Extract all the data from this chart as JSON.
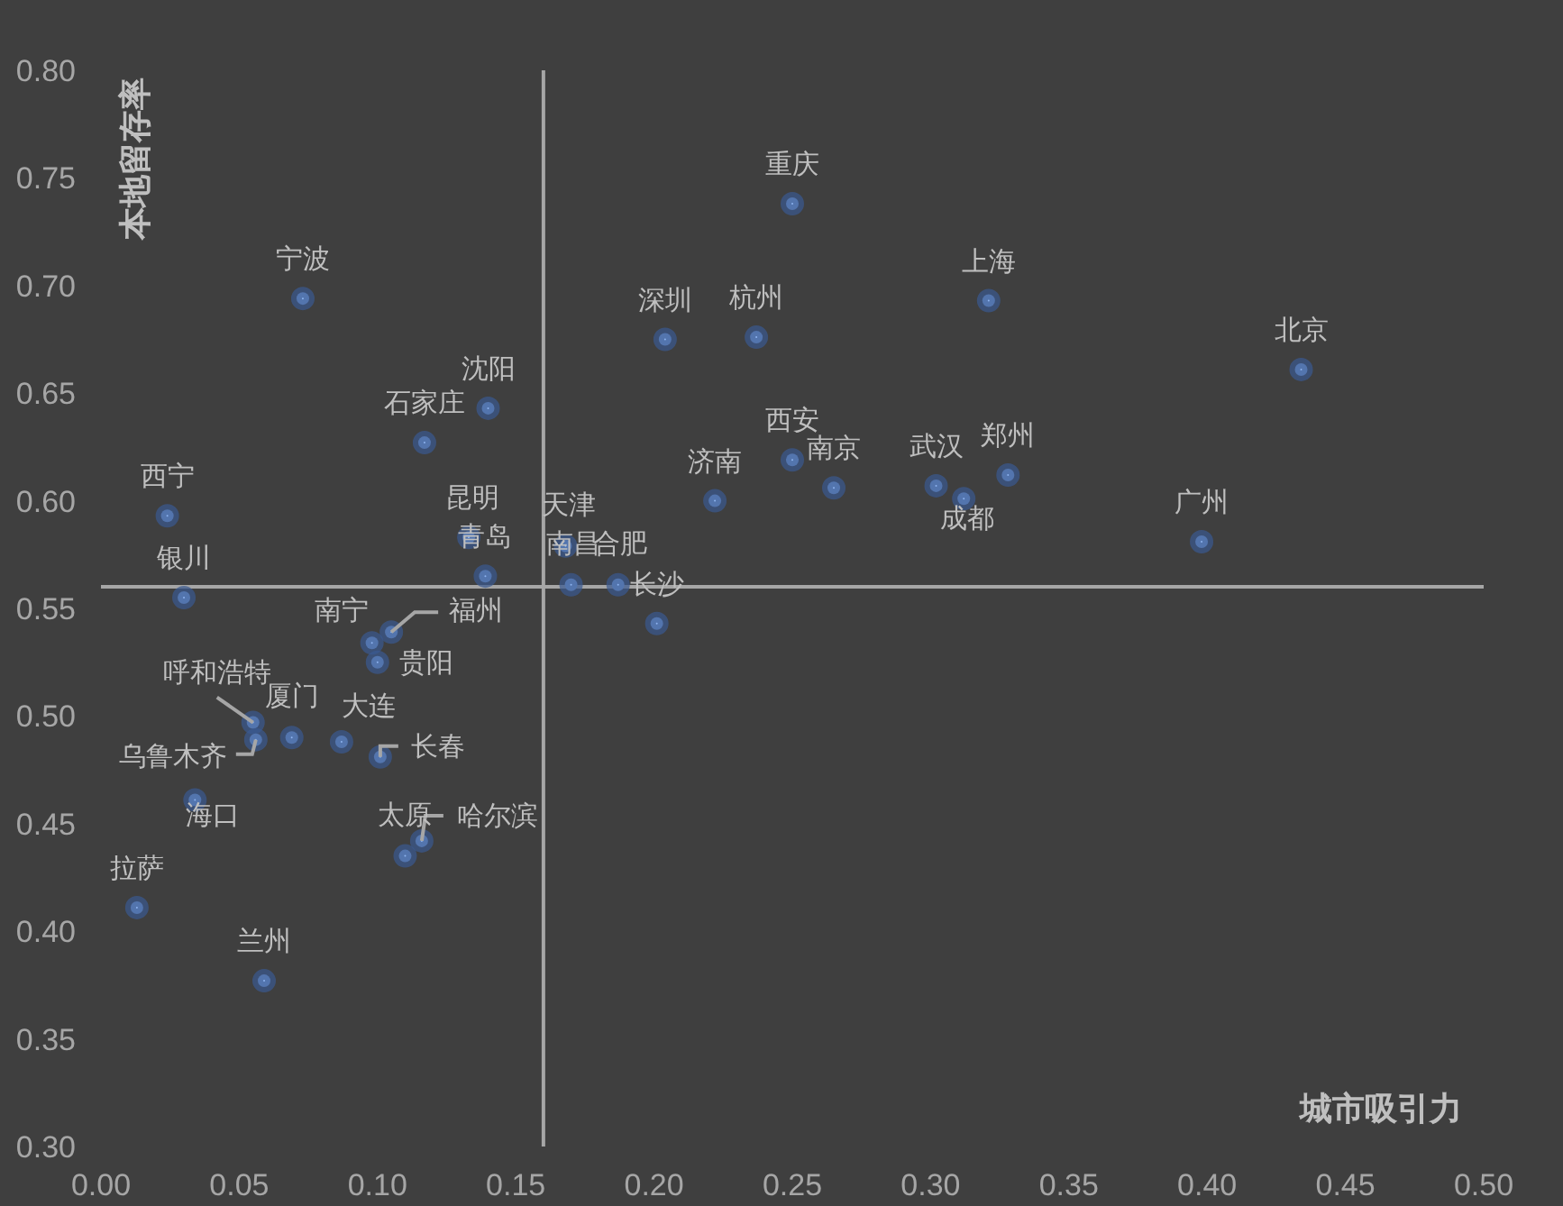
{
  "chart_data": {
    "type": "scatter",
    "xlabel": "城市吸引力",
    "ylabel": "本地留存率",
    "marker": "circle",
    "xlim": [
      0,
      0.5
    ],
    "ylim": [
      0.3,
      0.8
    ],
    "xticks": [
      {
        "value": 0,
        "label": "0.00"
      },
      {
        "value": 0.05,
        "label": "0.05"
      },
      {
        "value": 0.1,
        "label": "0.10"
      },
      {
        "value": 0.15,
        "label": "0.15"
      },
      {
        "value": 0.2,
        "label": "0.20"
      },
      {
        "value": 0.25,
        "label": "0.25"
      },
      {
        "value": 0.3,
        "label": "0.30"
      },
      {
        "value": 0.35,
        "label": "0.35"
      },
      {
        "value": 0.4,
        "label": "0.40"
      },
      {
        "value": 0.45,
        "label": "0.45"
      },
      {
        "value": 0.5,
        "label": "0.50"
      }
    ],
    "yticks": [
      {
        "value": 0.3,
        "label": "0.30"
      },
      {
        "value": 0.35,
        "label": "0.35"
      },
      {
        "value": 0.4,
        "label": "0.40"
      },
      {
        "value": 0.45,
        "label": "0.45"
      },
      {
        "value": 0.5,
        "label": "0.50"
      },
      {
        "value": 0.55,
        "label": "0.55"
      },
      {
        "value": 0.6,
        "label": "0.60"
      },
      {
        "value": 0.65,
        "label": "0.65"
      },
      {
        "value": 0.7,
        "label": "0.70"
      },
      {
        "value": 0.75,
        "label": "0.75"
      },
      {
        "value": 0.8,
        "label": "0.80"
      }
    ],
    "ref_lines": [
      {
        "axis": "x",
        "value": 0.16,
        "color": "#a6a6a6"
      },
      {
        "axis": "y",
        "value": 0.56,
        "color": "#a6a6a6"
      }
    ],
    "series": [
      {
        "color": "#8eb4f0",
        "x": [
          0.25,
          0.073,
          0.204,
          0.237,
          0.321,
          0.434,
          0.14,
          0.117,
          0.25,
          0.265,
          0.222,
          0.302,
          0.312,
          0.328,
          0.398,
          0.024,
          0.03,
          0.133,
          0.139,
          0.168,
          0.17,
          0.187,
          0.201,
          0.105,
          0.098,
          0.1,
          0.055,
          0.056,
          0.069,
          0.087,
          0.101,
          0.034,
          0.116,
          0.11,
          0.013,
          0.059
        ],
        "values": [
          0.738,
          0.694,
          0.675,
          0.676,
          0.693,
          0.661,
          0.643,
          0.627,
          0.619,
          0.606,
          0.6,
          0.607,
          0.601,
          0.612,
          0.581,
          0.593,
          0.555,
          0.583,
          0.565,
          0.579,
          0.561,
          0.561,
          0.543,
          0.539,
          0.534,
          0.525,
          0.497,
          0.489,
          0.49,
          0.488,
          0.481,
          0.461,
          0.442,
          0.435,
          0.411,
          0.377
        ]
      }
    ],
    "annotations": [
      {
        "text": "重庆",
        "x": 0.25,
        "y": 0.738
      },
      {
        "text": "宁波",
        "x": 0.073,
        "y": 0.694
      },
      {
        "text": "深圳",
        "x": 0.204,
        "y": 0.675
      },
      {
        "text": "杭州",
        "x": 0.237,
        "y": 0.676
      },
      {
        "text": "上海",
        "x": 0.321,
        "y": 0.693
      },
      {
        "text": "北京",
        "x": 0.434,
        "y": 0.661
      },
      {
        "text": "沈阳",
        "x": 0.14,
        "y": 0.643
      },
      {
        "text": "石家庄",
        "x": 0.117,
        "y": 0.627
      },
      {
        "text": "西安",
        "x": 0.25,
        "y": 0.619
      },
      {
        "text": "南京",
        "x": 0.265,
        "y": 0.606
      },
      {
        "text": "济南",
        "x": 0.222,
        "y": 0.6
      },
      {
        "text": "武汉",
        "x": 0.302,
        "y": 0.607
      },
      {
        "text": "成都",
        "x": 0.312,
        "y": 0.601
      },
      {
        "text": "郑州",
        "x": 0.328,
        "y": 0.612
      },
      {
        "text": "广州",
        "x": 0.398,
        "y": 0.581
      },
      {
        "text": "西宁",
        "x": 0.024,
        "y": 0.593
      },
      {
        "text": "银川",
        "x": 0.03,
        "y": 0.555
      },
      {
        "text": "昆明",
        "x": 0.133,
        "y": 0.583
      },
      {
        "text": "青岛",
        "x": 0.139,
        "y": 0.565
      },
      {
        "text": "天津",
        "x": 0.168,
        "y": 0.579
      },
      {
        "text": "南昌",
        "x": 0.17,
        "y": 0.561
      },
      {
        "text": "合肥",
        "x": 0.187,
        "y": 0.561
      },
      {
        "text": "长沙",
        "x": 0.201,
        "y": 0.543
      },
      {
        "text": "福州",
        "x": 0.105,
        "y": 0.539
      },
      {
        "text": "南宁",
        "x": 0.098,
        "y": 0.534
      },
      {
        "text": "贵阳",
        "x": 0.1,
        "y": 0.525
      },
      {
        "text": "呼和浩特",
        "x": 0.055,
        "y": 0.497
      },
      {
        "text": "乌鲁木齐",
        "x": 0.056,
        "y": 0.489
      },
      {
        "text": "厦门",
        "x": 0.069,
        "y": 0.49
      },
      {
        "text": "大连",
        "x": 0.087,
        "y": 0.488
      },
      {
        "text": "长春",
        "x": 0.101,
        "y": 0.481
      },
      {
        "text": "海口",
        "x": 0.034,
        "y": 0.461
      },
      {
        "text": "哈尔滨",
        "x": 0.116,
        "y": 0.442
      },
      {
        "text": "太原",
        "x": 0.11,
        "y": 0.435
      },
      {
        "text": "拉萨",
        "x": 0.013,
        "y": 0.411
      },
      {
        "text": "兰州",
        "x": 0.059,
        "y": 0.377
      }
    ]
  }
}
